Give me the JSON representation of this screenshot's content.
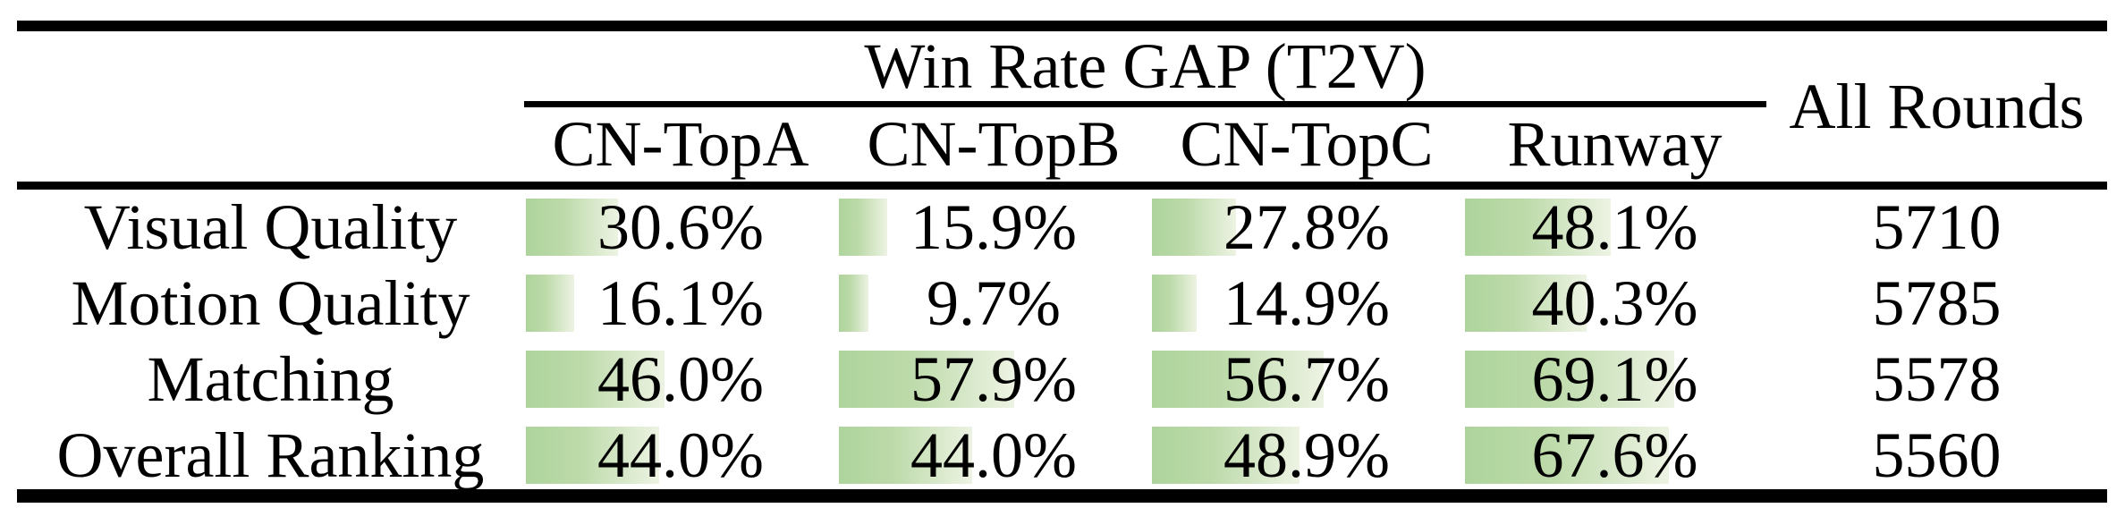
{
  "table": {
    "group_header": "Win Rate GAP (T2V)",
    "all_rounds_header": "All Rounds",
    "columns": [
      "CN-TopA",
      "CN-TopB",
      "CN-TopC",
      "Runway"
    ],
    "rows": [
      {
        "label": "Visual Quality",
        "cells": [
          {
            "pct": 30.6,
            "display": "30.6%"
          },
          {
            "pct": 15.9,
            "display": "15.9%"
          },
          {
            "pct": 27.8,
            "display": "27.8%"
          },
          {
            "pct": 48.1,
            "display": "48.1%"
          }
        ],
        "all_rounds": "5710"
      },
      {
        "label": "Motion Quality",
        "cells": [
          {
            "pct": 16.1,
            "display": "16.1%"
          },
          {
            "pct": 9.7,
            "display": "9.7%"
          },
          {
            "pct": 14.9,
            "display": "14.9%"
          },
          {
            "pct": 40.3,
            "display": "40.3%"
          }
        ],
        "all_rounds": "5785"
      },
      {
        "label": "Matching",
        "cells": [
          {
            "pct": 46.0,
            "display": "46.0%"
          },
          {
            "pct": 57.9,
            "display": "57.9%"
          },
          {
            "pct": 56.7,
            "display": "56.7%"
          },
          {
            "pct": 69.1,
            "display": "69.1%"
          }
        ],
        "all_rounds": "5578"
      },
      {
        "label": "Overall Ranking",
        "cells": [
          {
            "pct": 44.0,
            "display": "44.0%"
          },
          {
            "pct": 44.0,
            "display": "44.0%"
          },
          {
            "pct": 48.9,
            "display": "48.9%"
          },
          {
            "pct": 67.6,
            "display": "67.6%"
          }
        ],
        "all_rounds": "5560"
      }
    ]
  },
  "colors": {
    "background": "#ffffff",
    "text": "#000000",
    "rule": "#000000",
    "bar_green_start": "#aed49c",
    "bar_green_end": "#edf3e3"
  },
  "chart_data": {
    "type": "table",
    "title": "Win Rate GAP (T2V)",
    "columns": [
      "",
      "CN-TopA",
      "CN-TopB",
      "CN-TopC",
      "Runway",
      "All Rounds"
    ],
    "rows": [
      {
        "label": "Visual Quality",
        "win_rate_gap_pct": [
          30.6,
          15.9,
          27.8,
          48.1
        ],
        "all_rounds": 5710
      },
      {
        "label": "Motion Quality",
        "win_rate_gap_pct": [
          16.1,
          9.7,
          14.9,
          40.3
        ],
        "all_rounds": 5785
      },
      {
        "label": "Matching",
        "win_rate_gap_pct": [
          46.0,
          57.9,
          56.7,
          69.1
        ],
        "all_rounds": 5578
      },
      {
        "label": "Overall Ranking",
        "win_rate_gap_pct": [
          44.0,
          44.0,
          48.9,
          67.6
        ],
        "all_rounds": 5560
      }
    ],
    "layout": "green horizontal data bars behind each percentage, left-anchored in cell, length proportional to value (100% = full column width)"
  }
}
